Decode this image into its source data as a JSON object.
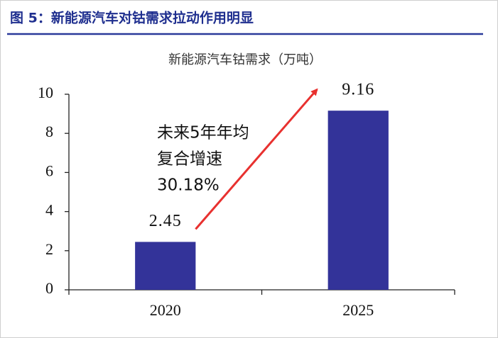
{
  "chart_data": {
    "type": "bar",
    "title": "图 5：新能源汽车对钴需求拉动作用明显",
    "subtitle": "新能源汽车钴需求（万吨）",
    "categories": [
      "2020",
      "2025"
    ],
    "values": [
      2.45,
      9.16
    ],
    "color": "#333399",
    "ylim": [
      0,
      10
    ],
    "yticks": [
      0,
      2,
      4,
      6,
      8,
      10
    ],
    "annotation": [
      "未来5年年均",
      "复合增速",
      "30.18%"
    ],
    "annotation_color": "#e8312f"
  }
}
